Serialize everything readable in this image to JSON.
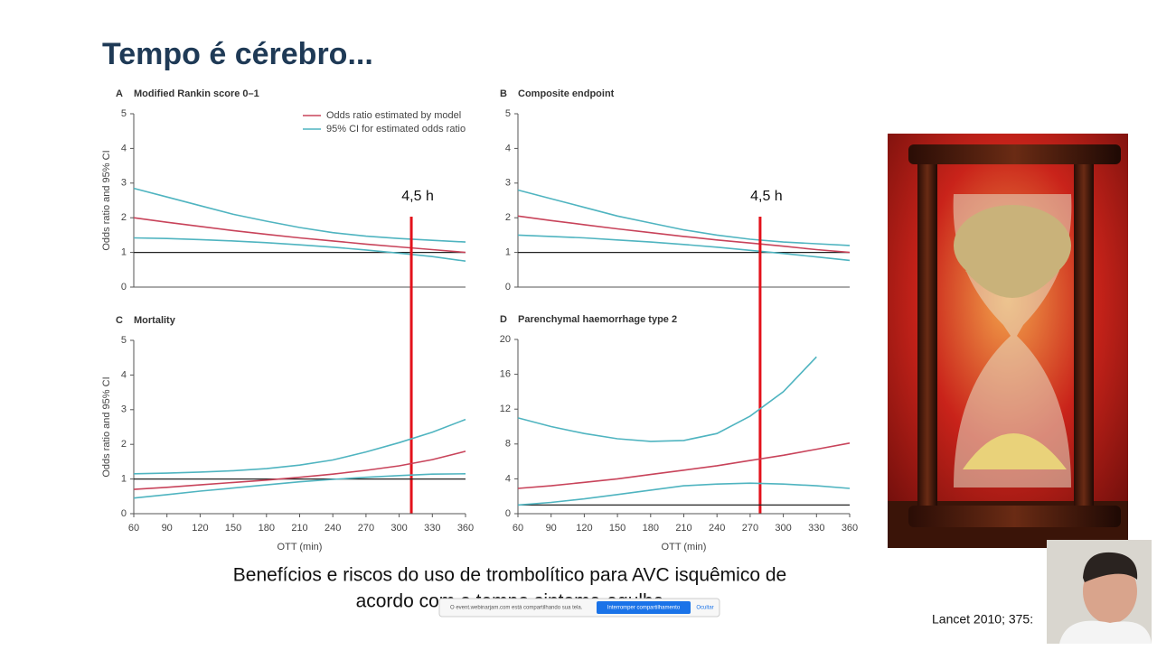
{
  "slide": {
    "title": "Tempo é cérebro...",
    "caption": [
      "Benefícios e riscos do uso de trombolítico para AVC isquêmico de",
      "acordo com o tempo sintoma-agulha"
    ],
    "citation": "Lancet 2010; 375:"
  },
  "share_bar": {
    "message": "O event.webinarjam.com está compartilhando sua tela.",
    "stop_button": "Interromper compartilhamento",
    "hide_button": "Ocultar"
  },
  "chart_data": [
    {
      "type": "line",
      "panel": "A",
      "title": "Modified Rankin score 0–1",
      "ylabel": "Odds ratio and 95% CI",
      "x": [
        60,
        90,
        120,
        150,
        180,
        210,
        240,
        270,
        300,
        330,
        360
      ],
      "xlim": [
        60,
        360
      ],
      "ylim": [
        0,
        5
      ],
      "yticks": [
        0,
        1,
        2,
        3,
        4,
        5
      ],
      "reference_line": 1,
      "legend": "upper right",
      "marker": {
        "label": "4,5 h",
        "x": 311
      },
      "series": [
        {
          "name": "Odds ratio estimated by model",
          "color": "#c8435a",
          "values": [
            2.0,
            1.87,
            1.75,
            1.63,
            1.52,
            1.42,
            1.33,
            1.24,
            1.16,
            1.08,
            1.0
          ]
        },
        {
          "name": "95% CI for estimated odds ratio",
          "color": "#4fb4c0",
          "values": [
            2.85,
            2.6,
            2.35,
            2.1,
            1.9,
            1.72,
            1.57,
            1.47,
            1.4,
            1.35,
            1.3
          ]
        },
        {
          "color": "#4fb4c0",
          "values": [
            1.42,
            1.4,
            1.37,
            1.33,
            1.28,
            1.22,
            1.15,
            1.07,
            0.98,
            0.88,
            0.75
          ]
        }
      ]
    },
    {
      "type": "line",
      "panel": "B",
      "title": "Composite endpoint",
      "x": [
        60,
        90,
        120,
        150,
        180,
        210,
        240,
        270,
        300,
        330,
        360
      ],
      "xlim": [
        60,
        360
      ],
      "ylim": [
        0,
        5
      ],
      "yticks": [
        0,
        1,
        2,
        3,
        4,
        5
      ],
      "reference_line": 1,
      "marker": {
        "label": "4,5 h",
        "x": 279
      },
      "series": [
        {
          "color": "#c8435a",
          "values": [
            2.05,
            1.92,
            1.8,
            1.68,
            1.57,
            1.46,
            1.36,
            1.27,
            1.18,
            1.08,
            1.0
          ]
        },
        {
          "color": "#4fb4c0",
          "values": [
            2.8,
            2.55,
            2.3,
            2.05,
            1.85,
            1.65,
            1.5,
            1.38,
            1.3,
            1.25,
            1.2
          ]
        },
        {
          "color": "#4fb4c0",
          "values": [
            1.5,
            1.46,
            1.42,
            1.36,
            1.3,
            1.23,
            1.15,
            1.06,
            0.97,
            0.87,
            0.77
          ]
        }
      ]
    },
    {
      "type": "line",
      "panel": "C",
      "title": "Mortality",
      "ylabel": "Odds ratio and 95% CI",
      "xlabel": "OTT (min)",
      "x": [
        60,
        90,
        120,
        150,
        180,
        210,
        240,
        270,
        300,
        330,
        360
      ],
      "xlim": [
        60,
        360
      ],
      "xticks": [
        60,
        90,
        120,
        150,
        180,
        210,
        240,
        270,
        300,
        330,
        360
      ],
      "ylim": [
        0,
        5
      ],
      "yticks": [
        0,
        1,
        2,
        3,
        4,
        5
      ],
      "reference_line": 1,
      "series": [
        {
          "color": "#c8435a",
          "values": [
            0.7,
            0.76,
            0.83,
            0.9,
            0.97,
            1.05,
            1.14,
            1.25,
            1.38,
            1.56,
            1.8
          ]
        },
        {
          "color": "#4fb4c0",
          "values": [
            1.15,
            1.17,
            1.2,
            1.24,
            1.3,
            1.4,
            1.55,
            1.78,
            2.05,
            2.35,
            2.72
          ]
        },
        {
          "color": "#4fb4c0",
          "values": [
            0.45,
            0.55,
            0.65,
            0.74,
            0.83,
            0.92,
            0.99,
            1.05,
            1.1,
            1.14,
            1.15
          ]
        }
      ]
    },
    {
      "type": "line",
      "panel": "D",
      "title": "Parenchymal haemorrhage type 2",
      "xlabel": "OTT (min)",
      "x": [
        60,
        90,
        120,
        150,
        180,
        210,
        240,
        270,
        300,
        330,
        360
      ],
      "xlim": [
        60,
        360
      ],
      "xticks": [
        60,
        90,
        120,
        150,
        180,
        210,
        240,
        270,
        300,
        330,
        360
      ],
      "ylim": [
        0,
        20
      ],
      "yticks": [
        0,
        4,
        8,
        12,
        16,
        20
      ],
      "reference_line": 1,
      "series": [
        {
          "color": "#c8435a",
          "values": [
            2.9,
            3.2,
            3.6,
            4.0,
            4.5,
            5.0,
            5.5,
            6.1,
            6.7,
            7.4,
            8.1
          ]
        },
        {
          "color": "#4fb4c0",
          "values": [
            11,
            10,
            9.2,
            8.6,
            8.3,
            8.4,
            9.2,
            11.2,
            14,
            18,
            null
          ]
        },
        {
          "color": "#4fb4c0",
          "values": [
            1.0,
            1.3,
            1.7,
            2.2,
            2.7,
            3.2,
            3.4,
            3.5,
            3.4,
            3.2,
            2.9
          ]
        }
      ]
    }
  ]
}
